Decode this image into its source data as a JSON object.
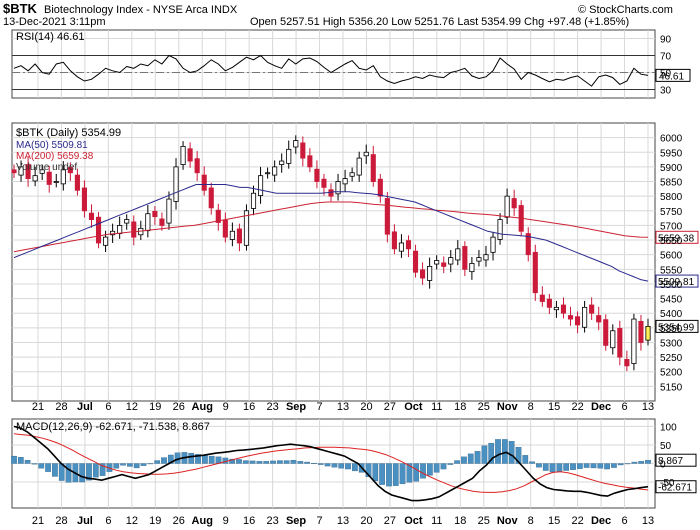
{
  "header": {
    "symbol": "$BTK",
    "name": "Biotechnology Index - NYSE Arca INDX",
    "date": "13-Dec-2021 3:11pm",
    "ohlc": "Open 5257.51  High 5356.20  Low 5251.76  Last 5354.99  Chg +97.48 (+1.85%)",
    "watermark": "© StockCharts.com"
  },
  "colors": {
    "up": "#ffffff",
    "down": "#cc1a3a",
    "last": "#ffee55",
    "ma50": "#2a2a8c",
    "ma200": "#cc2233",
    "macd": "#000000",
    "signal": "#dd2222",
    "hist": "#4a90c0",
    "grid": "#d8d8d8"
  },
  "chart_data": [
    {
      "type": "line",
      "panel": "rsi",
      "legend": "RSI(14) 46.61",
      "ylim": [
        20,
        100
      ],
      "ticks": [
        30,
        50,
        70,
        90
      ],
      "last_label": "46.61",
      "values": [
        55,
        58,
        52,
        60,
        50,
        48,
        60,
        62,
        52,
        45,
        40,
        42,
        48,
        55,
        52,
        50,
        57,
        55,
        60,
        58,
        65,
        60,
        70,
        66,
        55,
        50,
        52,
        58,
        65,
        60,
        52,
        56,
        62,
        68,
        65,
        70,
        62,
        58,
        55,
        66,
        60,
        66,
        67,
        63,
        56,
        50,
        55,
        60,
        64,
        55,
        53,
        58,
        45,
        40,
        37,
        40,
        42,
        45,
        43,
        47,
        45,
        44,
        50,
        52,
        55,
        46,
        43,
        45,
        52,
        67,
        60,
        54,
        42,
        50,
        47,
        43,
        39,
        42,
        41,
        44,
        46,
        40,
        34,
        45,
        47,
        44,
        36,
        40,
        55,
        48,
        46.61
      ]
    },
    {
      "type": "candlestick",
      "panel": "price",
      "legend": [
        "$BTK (Daily) 5354.99",
        "MA(50) 5509.81",
        "MA(200) 5659.38",
        "Volume undef"
      ],
      "ylim": [
        5100,
        6050
      ],
      "ticks": [
        5150,
        5200,
        5250,
        5300,
        5350,
        5400,
        5450,
        5500,
        5550,
        5600,
        5650,
        5700,
        5750,
        5800,
        5850,
        5900,
        5950,
        6000
      ],
      "ma50_label": "5509.81",
      "ma200_label": "5659.38",
      "last_label": "5354.99",
      "close": [
        5880,
        5900,
        5860,
        5870,
        5890,
        5840,
        5850,
        5890,
        5880,
        5820,
        5750,
        5720,
        5640,
        5660,
        5680,
        5700,
        5720,
        5660,
        5690,
        5740,
        5730,
        5700,
        5790,
        5900,
        5970,
        5920,
        5880,
        5820,
        5760,
        5710,
        5660,
        5680,
        5640,
        5750,
        5810,
        5870,
        5880,
        5900,
        5920,
        5960,
        5990,
        5930,
        5900,
        5850,
        5830,
        5800,
        5850,
        5860,
        5880,
        5930,
        5950,
        5850,
        5800,
        5670,
        5620,
        5640,
        5620,
        5540,
        5520,
        5560,
        5580,
        5560,
        5590,
        5620,
        5550,
        5570,
        5590,
        5600,
        5660,
        5720,
        5800,
        5760,
        5680,
        5600,
        5470,
        5440,
        5420,
        5420,
        5400,
        5380,
        5360,
        5420,
        5400,
        5370,
        5290,
        5340,
        5250,
        5220,
        5380,
        5300,
        5354.99
      ],
      "ma50": [
        5590,
        5600,
        5610,
        5620,
        5630,
        5640,
        5650,
        5660,
        5670,
        5680,
        5690,
        5700,
        5710,
        5720,
        5730,
        5740,
        5750,
        5760,
        5770,
        5780,
        5790,
        5800,
        5810,
        5820,
        5830,
        5840,
        5840,
        5840,
        5840,
        5840,
        5835,
        5830,
        5830,
        5825,
        5820,
        5815,
        5810,
        5810,
        5810,
        5810,
        5810,
        5810,
        5810,
        5812,
        5815,
        5815,
        5815,
        5812,
        5810,
        5808,
        5805,
        5800,
        5795,
        5790,
        5785,
        5780,
        5770,
        5760,
        5750,
        5740,
        5730,
        5720,
        5710,
        5700,
        5690,
        5680,
        5675,
        5670,
        5668,
        5666,
        5664,
        5660,
        5655,
        5650,
        5640,
        5630,
        5620,
        5610,
        5600,
        5590,
        5580,
        5570,
        5560,
        5545,
        5535,
        5525,
        5515,
        5509.81
      ],
      "ma200": [
        5610,
        5615,
        5620,
        5625,
        5630,
        5635,
        5640,
        5645,
        5650,
        5655,
        5660,
        5665,
        5670,
        5672,
        5675,
        5678,
        5680,
        5683,
        5686,
        5689,
        5692,
        5695,
        5698,
        5700,
        5705,
        5710,
        5715,
        5720,
        5725,
        5730,
        5735,
        5740,
        5745,
        5750,
        5755,
        5760,
        5765,
        5770,
        5775,
        5778,
        5780,
        5780,
        5780,
        5780,
        5778,
        5775,
        5772,
        5770,
        5768,
        5765,
        5762,
        5760,
        5757,
        5755,
        5752,
        5750,
        5748,
        5745,
        5742,
        5740,
        5738,
        5736,
        5733,
        5730,
        5727,
        5724,
        5720,
        5716,
        5712,
        5708,
        5704,
        5700,
        5695,
        5690,
        5685,
        5680,
        5675,
        5670,
        5665,
        5662,
        5660,
        5659.38
      ]
    },
    {
      "type": "line",
      "panel": "macd",
      "legend": "MACD(12,26,9) -62.671, -71.538, 8.867",
      "ylim": [
        -120,
        120
      ],
      "ticks": [
        -50,
        0,
        50,
        100
      ],
      "last_labels": [
        "8.867",
        "-62.671"
      ],
      "macd": [
        100,
        95,
        85,
        70,
        55,
        40,
        20,
        0,
        -15,
        -25,
        -35,
        -40,
        -42,
        -45,
        -40,
        -35,
        -30,
        -35,
        -40,
        -35,
        -30,
        -20,
        -10,
        0,
        10,
        15,
        18,
        20,
        22,
        25,
        28,
        30,
        32,
        35,
        36,
        38,
        40,
        42,
        45,
        48,
        50,
        52,
        50,
        48,
        45,
        40,
        35,
        30,
        25,
        20,
        10,
        0,
        -20,
        -40,
        -60,
        -75,
        -85,
        -90,
        -95,
        -100,
        -100,
        -98,
        -95,
        -90,
        -80,
        -70,
        -60,
        -50,
        -40,
        -20,
        -5,
        15,
        25,
        30,
        20,
        0,
        -20,
        -40,
        -55,
        -65,
        -70,
        -72,
        -74,
        -75,
        -75,
        -78,
        -82,
        -86,
        -88,
        -80,
        -75,
        -70,
        -68,
        -65,
        -62.671
      ],
      "signal": [
        80,
        78,
        76,
        72,
        68,
        62,
        55,
        46,
        36,
        25,
        15,
        5,
        -5,
        -12,
        -18,
        -22,
        -25,
        -27,
        -28,
        -29,
        -29,
        -28,
        -26,
        -23,
        -19,
        -15,
        -10,
        -5,
        0,
        5,
        10,
        15,
        20,
        24,
        28,
        31,
        34,
        36,
        38,
        40,
        42,
        43,
        44,
        44,
        44,
        43,
        42,
        40,
        38,
        35,
        30,
        24,
        16,
        7,
        -3,
        -14,
        -25,
        -35,
        -44,
        -52,
        -60,
        -66,
        -71,
        -75,
        -77,
        -78,
        -78,
        -76,
        -73,
        -68,
        -60,
        -50,
        -40,
        -30,
        -24,
        -22,
        -25,
        -30,
        -36,
        -42,
        -48,
        -53,
        -57,
        -61,
        -64,
        -66,
        -69,
        -71.538
      ],
      "hist": [
        20,
        17,
        9,
        -2,
        -13,
        -22,
        -35,
        -46,
        -51,
        -50,
        -50,
        -45,
        -37,
        -33,
        -22,
        -13,
        -5,
        -8,
        -12,
        -6,
        -1,
        8,
        16,
        23,
        29,
        30,
        28,
        25,
        22,
        20,
        18,
        15,
        12,
        11,
        8,
        7,
        6,
        6,
        7,
        8,
        8,
        9,
        6,
        4,
        1,
        -3,
        -7,
        -10,
        -13,
        -15,
        -20,
        -24,
        -36,
        -47,
        -57,
        -61,
        -60,
        -55,
        -51,
        -48,
        -40,
        -32,
        -24,
        -15,
        -3,
        8,
        18,
        26,
        33,
        48,
        55,
        65,
        65,
        60,
        44,
        22,
        5,
        -10,
        -19,
        -23,
        -22,
        -19,
        -17,
        -14,
        -11,
        -12,
        -13,
        -15,
        -11,
        -4,
        0,
        4,
        6,
        8.867
      ]
    }
  ],
  "x_labels": [
    "21",
    "28",
    "Jul",
    "6",
    "12",
    "19",
    "26",
    "Aug",
    "9",
    "16",
    "23",
    "Sep",
    "7",
    "13",
    "20",
    "27",
    "Oct",
    "11",
    "18",
    "25",
    "Nov",
    "8",
    "15",
    "22",
    "Dec",
    "6",
    "13"
  ]
}
